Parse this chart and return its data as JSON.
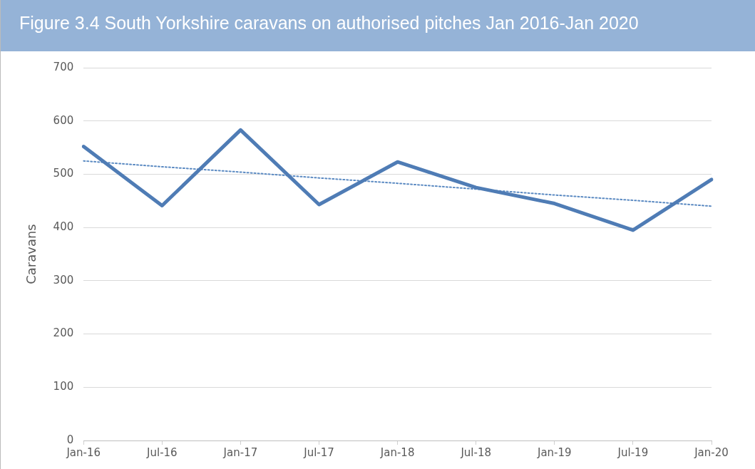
{
  "chart_data": {
    "type": "line",
    "title": "Figure 3.4 South Yorkshire caravans on authorised pitches Jan 2016-Jan 2020",
    "ylabel": "Caravans",
    "categories": [
      "Jan-16",
      "Jul-16",
      "Jan-17",
      "Jul-17",
      "Jan-18",
      "Jul-18",
      "Jan-19",
      "Jul-19",
      "Jan-20"
    ],
    "series": [
      {
        "type": "line",
        "color": "#4f7cb5",
        "line_style": "solid",
        "values": [
          552,
          441,
          583,
          443,
          523,
          475,
          445,
          395,
          490
        ]
      },
      {
        "type": "line",
        "color": "#5b8ac2",
        "line_style": "dotted",
        "values": [
          525,
          514,
          504,
          493,
          483,
          472,
          461,
          451,
          440
        ]
      }
    ],
    "ylim": [
      0,
      700
    ],
    "yticks": [
      0,
      100,
      200,
      300,
      400,
      500,
      600,
      700
    ],
    "grid": "y",
    "legend": false,
    "marker": "none"
  }
}
